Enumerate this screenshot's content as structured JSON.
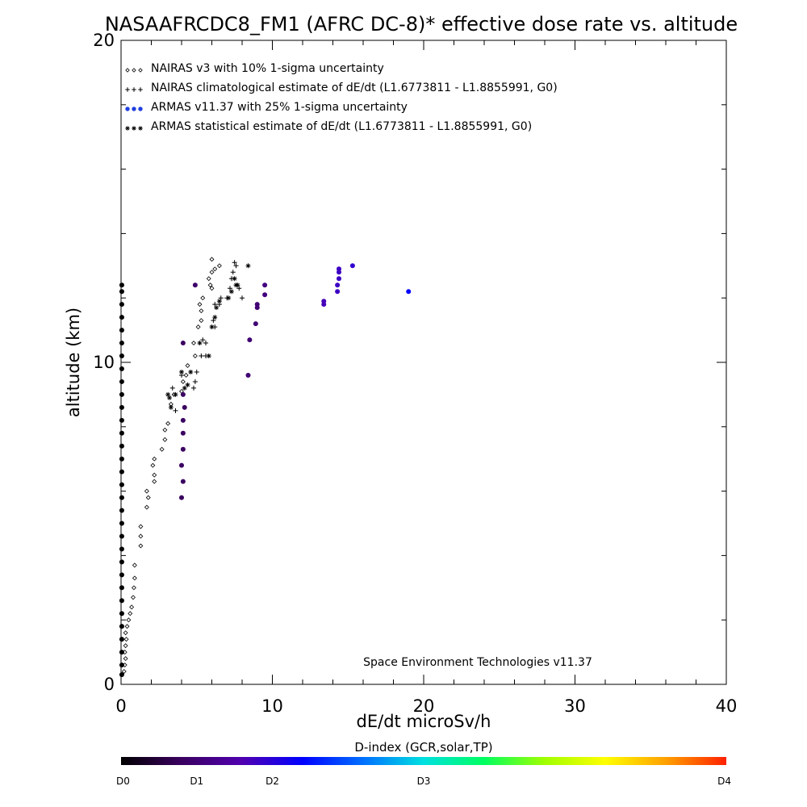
{
  "chart_data": {
    "type": "scatter",
    "title": "NASAAFRCDC8_FM1 (AFRC DC-8)* effective dose rate vs. altitude",
    "xlabel": "dE/dt microSv/h",
    "ylabel": "altitude (km)",
    "xlim": [
      0,
      40
    ],
    "ylim": [
      0,
      20
    ],
    "x_ticks": [
      0,
      10,
      20,
      30,
      40
    ],
    "y_ticks": [
      0,
      10,
      20
    ],
    "annotation": "Space Environment Technologies v11.37",
    "legend_position": "top-left",
    "legend": [
      {
        "marker": "diamond",
        "label": "NAIRAS v3 with 10% 1-sigma uncertainty"
      },
      {
        "marker": "plus",
        "label": "NAIRAS climatological estimate of dE/dt (L1.6773811 - L1.8855991, G0)"
      },
      {
        "marker": "dot",
        "label": "ARMAS v11.37 with 25% 1-sigma uncertainty",
        "color": "#2040e0"
      },
      {
        "marker": "asterisk",
        "label": "ARMAS statistical estimate of dE/dt (L1.6773811 - L1.8855991, G0)"
      }
    ],
    "colorbar": {
      "title": "D-index (GCR,solar,TP)",
      "labels": [
        {
          "text": "D0",
          "value": 0
        },
        {
          "text": "D1",
          "value": 0.5
        },
        {
          "text": "D2",
          "value": 1.0
        },
        {
          "text": "D3",
          "value": 2.0
        },
        {
          "text": "D4",
          "value": 4.0
        }
      ],
      "stops": [
        "#000000",
        "#3a0060",
        "#5000b0",
        "#0000ff",
        "#0070ff",
        "#00e0e0",
        "#00ff60",
        "#a0ff00",
        "#ffff00",
        "#ffa000",
        "#ff2000"
      ]
    },
    "series": [
      {
        "name": "NAIRAS v3 with 10% 1-sigma uncertainty",
        "marker": "diamond",
        "points": [
          [
            0.2,
            0.4
          ],
          [
            0.25,
            0.6
          ],
          [
            0.3,
            0.8
          ],
          [
            0.25,
            1.0
          ],
          [
            0.3,
            1.2
          ],
          [
            0.35,
            1.4
          ],
          [
            0.3,
            1.6
          ],
          [
            0.4,
            1.8
          ],
          [
            0.5,
            2.0
          ],
          [
            0.6,
            2.2
          ],
          [
            0.7,
            2.4
          ],
          [
            0.8,
            2.7
          ],
          [
            0.85,
            3.0
          ],
          [
            0.9,
            3.3
          ],
          [
            0.9,
            3.7
          ],
          [
            1.3,
            4.3
          ],
          [
            1.3,
            4.6
          ],
          [
            1.3,
            4.9
          ],
          [
            1.7,
            5.5
          ],
          [
            1.8,
            5.8
          ],
          [
            1.7,
            6.0
          ],
          [
            2.2,
            6.3
          ],
          [
            2.2,
            6.5
          ],
          [
            2.1,
            6.8
          ],
          [
            2.2,
            7.0
          ],
          [
            2.7,
            7.3
          ],
          [
            2.9,
            7.6
          ],
          [
            2.9,
            7.9
          ],
          [
            3.1,
            8.1
          ],
          [
            3.3,
            8.7
          ],
          [
            3.5,
            9.0
          ],
          [
            4.0,
            9.1
          ],
          [
            4.1,
            9.4
          ],
          [
            4.3,
            9.6
          ],
          [
            4.4,
            9.9
          ],
          [
            4.9,
            10.2
          ],
          [
            4.8,
            10.6
          ],
          [
            5.1,
            11.1
          ],
          [
            5.3,
            11.3
          ],
          [
            5.3,
            11.6
          ],
          [
            5.2,
            11.8
          ],
          [
            5.4,
            12.0
          ],
          [
            5.9,
            12.4
          ],
          [
            6.0,
            12.3
          ],
          [
            5.8,
            12.6
          ],
          [
            6.0,
            12.8
          ],
          [
            6.2,
            12.9
          ],
          [
            6.5,
            13.0
          ],
          [
            6.0,
            13.2
          ]
        ]
      },
      {
        "name": "NAIRAS climatological estimate of dE/dt (L1.6773811 - L1.8855991, G0)",
        "marker": "plus",
        "points": [
          [
            3.6,
            8.5
          ],
          [
            3.4,
            9.2
          ],
          [
            4.0,
            9.6
          ],
          [
            4.8,
            9.2
          ],
          [
            4.9,
            9.4
          ],
          [
            5.0,
            9.7
          ],
          [
            5.3,
            10.2
          ],
          [
            5.6,
            10.2
          ],
          [
            5.6,
            10.6
          ],
          [
            5.4,
            10.7
          ],
          [
            6.2,
            11.1
          ],
          [
            6.1,
            11.3
          ],
          [
            6.2,
            11.8
          ],
          [
            6.6,
            12.0
          ],
          [
            6.5,
            11.8
          ],
          [
            7.0,
            12.0
          ],
          [
            7.2,
            12.3
          ],
          [
            7.3,
            12.6
          ],
          [
            7.4,
            12.8
          ],
          [
            7.6,
            13.0
          ],
          [
            7.8,
            12.3
          ],
          [
            8.0,
            12.0
          ],
          [
            7.5,
            13.1
          ]
        ]
      },
      {
        "name": "ARMAS statistical estimate of dE/dt (L1.6773811 - L1.8855991, G0)",
        "marker": "asterisk",
        "points": [
          [
            3.3,
            8.6
          ],
          [
            3.2,
            8.9
          ],
          [
            3.1,
            9.0
          ],
          [
            3.6,
            9.0
          ],
          [
            4.0,
            9.7
          ],
          [
            4.2,
            9.2
          ],
          [
            4.4,
            9.3
          ],
          [
            4.6,
            9.7
          ],
          [
            5.2,
            10.6
          ],
          [
            5.8,
            10.2
          ],
          [
            6.0,
            11.1
          ],
          [
            6.2,
            11.4
          ],
          [
            6.3,
            11.7
          ],
          [
            6.5,
            11.9
          ],
          [
            7.1,
            12.0
          ],
          [
            7.3,
            12.2
          ],
          [
            7.6,
            12.4
          ],
          [
            7.5,
            12.6
          ],
          [
            7.7,
            12.4
          ],
          [
            8.4,
            13.0
          ]
        ]
      },
      {
        "name": "ARMAS v11.37 with 25% 1-sigma uncertainty",
        "marker": "dot",
        "points": [
          [
            0.05,
            0.3,
            0
          ],
          [
            0.05,
            0.6,
            0
          ],
          [
            0.05,
            1.0,
            0
          ],
          [
            0.05,
            1.4,
            0
          ],
          [
            0.05,
            1.8,
            0
          ],
          [
            0.05,
            2.2,
            0
          ],
          [
            0.05,
            2.6,
            0
          ],
          [
            0.05,
            3.0,
            0
          ],
          [
            0.05,
            3.4,
            0
          ],
          [
            0.05,
            3.8,
            0
          ],
          [
            0.05,
            4.2,
            0
          ],
          [
            0.05,
            4.6,
            0
          ],
          [
            0.05,
            5.0,
            0
          ],
          [
            0.05,
            5.4,
            0
          ],
          [
            0.05,
            5.8,
            0
          ],
          [
            0.05,
            6.2,
            0
          ],
          [
            0.05,
            6.6,
            0
          ],
          [
            0.05,
            7.0,
            0
          ],
          [
            0.05,
            7.4,
            0
          ],
          [
            0.05,
            7.8,
            0
          ],
          [
            0.05,
            8.2,
            0
          ],
          [
            0.05,
            8.6,
            0
          ],
          [
            0.05,
            9.0,
            0
          ],
          [
            0.05,
            9.4,
            0
          ],
          [
            0.05,
            9.8,
            0
          ],
          [
            0.05,
            10.2,
            0
          ],
          [
            0.05,
            10.6,
            0
          ],
          [
            0.05,
            11.0,
            0
          ],
          [
            0.05,
            11.4,
            0
          ],
          [
            0.05,
            11.8,
            0
          ],
          [
            0.05,
            12.2,
            0
          ],
          [
            0.05,
            12.4,
            0
          ],
          [
            4.0,
            5.8,
            0.4
          ],
          [
            4.1,
            6.3,
            0.4
          ],
          [
            4.0,
            6.8,
            0.4
          ],
          [
            4.1,
            7.3,
            0.4
          ],
          [
            4.1,
            7.8,
            0.4
          ],
          [
            4.1,
            8.2,
            0.4
          ],
          [
            4.2,
            8.6,
            0.4
          ],
          [
            4.1,
            9.0,
            0.4
          ],
          [
            4.1,
            10.6,
            0.4
          ],
          [
            4.9,
            12.4,
            0.45
          ],
          [
            8.4,
            9.6,
            0.5
          ],
          [
            8.5,
            10.7,
            0.5
          ],
          [
            8.9,
            11.2,
            0.5
          ],
          [
            9.0,
            11.7,
            0.5
          ],
          [
            9.0,
            11.8,
            0.5
          ],
          [
            9.5,
            12.1,
            0.55
          ],
          [
            9.5,
            12.4,
            0.55
          ],
          [
            13.4,
            11.8,
            0.85
          ],
          [
            13.4,
            11.9,
            0.85
          ],
          [
            14.3,
            12.2,
            0.9
          ],
          [
            14.3,
            12.4,
            0.9
          ],
          [
            14.4,
            12.6,
            0.9
          ],
          [
            14.4,
            12.8,
            0.9
          ],
          [
            14.4,
            12.9,
            0.9
          ],
          [
            15.3,
            13.0,
            0.95
          ],
          [
            19.0,
            12.2,
            1.2
          ]
        ]
      }
    ]
  }
}
